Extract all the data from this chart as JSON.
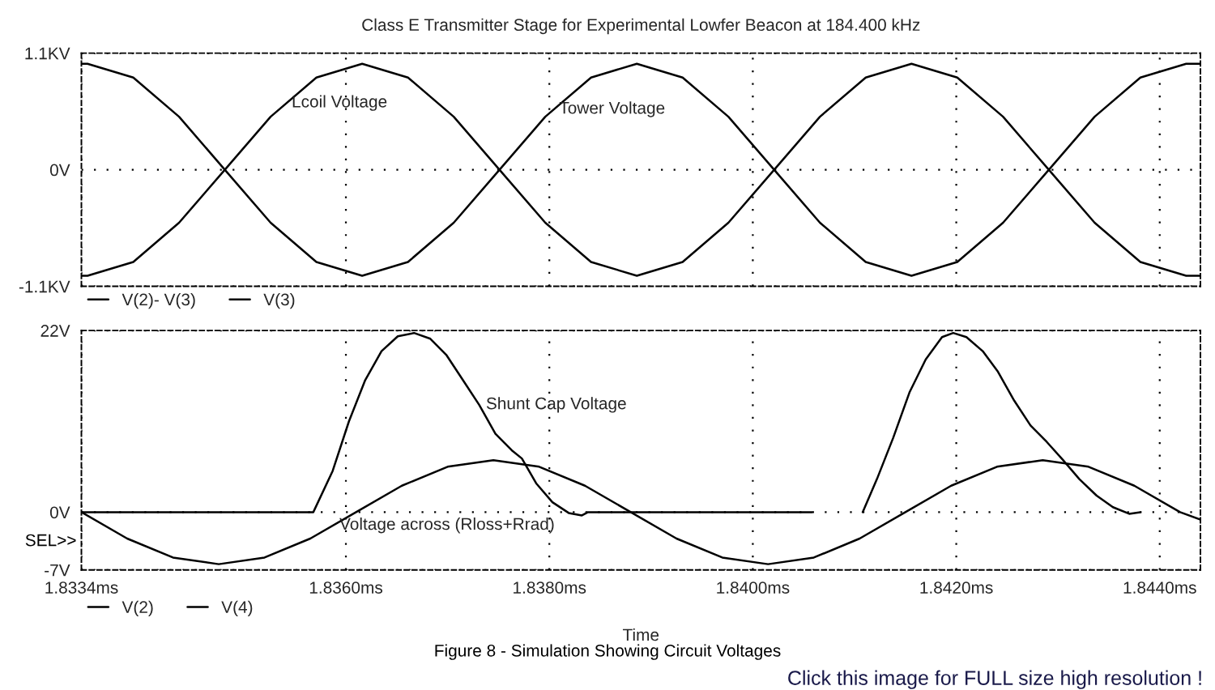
{
  "chart_data": [
    {
      "type": "line",
      "title": "Class E Transmitter Stage for Experimental Lowfer Beacon at 184.400 kHz",
      "x": [
        1.8334,
        1.83346,
        1.83391,
        1.83436,
        1.83481,
        1.83526,
        1.83571,
        1.83616,
        1.83661,
        1.83706,
        1.83751,
        1.83796,
        1.83841,
        1.83886,
        1.83931,
        1.83976,
        1.84021,
        1.84066,
        1.84111,
        1.84156,
        1.84201,
        1.84246,
        1.84291,
        1.84336,
        1.84381,
        1.84426,
        1.8444
      ],
      "series": [
        {
          "name": "V(2)- V(3)",
          "color": "#000000",
          "values": [
            -1,
            -1,
            -0.87,
            -0.5,
            0,
            0.5,
            0.87,
            1,
            0.87,
            0.5,
            0,
            -0.5,
            -0.87,
            -1,
            -0.87,
            -0.5,
            0,
            0.5,
            0.87,
            1,
            0.87,
            0.5,
            0,
            -0.5,
            -0.87,
            -1,
            -1
          ]
        },
        {
          "name": "V(3)",
          "color": "#000000",
          "values": [
            1,
            1,
            0.87,
            0.5,
            0,
            -0.5,
            -0.87,
            -1,
            -0.87,
            -0.5,
            0,
            0.5,
            0.87,
            1,
            0.87,
            0.5,
            0,
            -0.5,
            -0.87,
            -1,
            -0.87,
            -0.5,
            0,
            0.5,
            0.87,
            1,
            1
          ]
        }
      ],
      "xlim": [
        1.8334,
        1.8444
      ],
      "xticks": [
        {
          "value": 1.8334,
          "label": null
        },
        {
          "value": 1.836,
          "label": null
        },
        {
          "value": 1.838,
          "label": null
        },
        {
          "value": 1.84,
          "label": null
        },
        {
          "value": 1.842,
          "label": null
        },
        {
          "value": 1.844,
          "label": null
        }
      ],
      "ylim": [
        -1.1,
        1.1
      ],
      "yticks": [
        {
          "value": -1.1,
          "label": "-1.1KV"
        },
        {
          "value": 0,
          "label": "0V"
        },
        {
          "value": 1.1,
          "label": "1.1KV"
        }
      ],
      "tick_labels": "y",
      "grid": true,
      "legend": "bottom left",
      "line_style": "solid",
      "annotations": [
        {
          "text": "Lcoil Voltage",
          "x": 1.8354,
          "y": 0.63
        },
        {
          "text": "Tower Voltage",
          "x": 1.83803,
          "y": 0.57
        }
      ]
    },
    {
      "type": "line",
      "xlabel": "Time",
      "series": [
        {
          "name": "V(2)",
          "color": "#000000",
          "x": [
            1.8334,
            1.83568,
            1.83587,
            1.83603,
            1.83619,
            1.83635,
            1.83651,
            1.83667,
            1.83683,
            1.83699,
            1.83715,
            1.83731,
            1.83747,
            1.83763,
            1.83773,
            1.83787,
            1.83803,
            1.83819,
            1.83832,
            1.83838,
            1.84058,
            1.84083,
            1.84108,
            1.84122,
            1.84138,
            1.84154,
            1.8417,
            1.84186,
            1.84197,
            1.8421,
            1.84226,
            1.84241,
            1.84257,
            1.84273,
            1.84289,
            1.84305,
            1.84321,
            1.84338,
            1.84354,
            1.8437,
            1.84381
          ],
          "values": [
            0,
            0,
            5,
            11,
            16,
            19.5,
            21.3,
            21.7,
            21,
            19,
            16,
            13,
            9.5,
            7.5,
            6.5,
            3.5,
            1.2,
            -0.1,
            -0.4,
            0,
            0,
            null,
            0,
            4,
            9,
            14.5,
            18.5,
            21.2,
            21.7,
            21.2,
            19.5,
            17,
            13.5,
            10.5,
            8.5,
            6.3,
            4,
            2,
            0.6,
            -0.2,
            0
          ]
        },
        {
          "name": "V(4)",
          "color": "#000000",
          "x": [
            1.8334,
            1.83385,
            1.8343,
            1.83475,
            1.8352,
            1.83565,
            1.8361,
            1.83655,
            1.837,
            1.83745,
            1.8379,
            1.83835,
            1.8388,
            1.83925,
            1.8397,
            1.84015,
            1.8406,
            1.84105,
            1.8415,
            1.84195,
            1.8424,
            1.84285,
            1.8433,
            1.84375,
            1.8442,
            1.8444
          ],
          "values": [
            0,
            -3.2,
            -5.5,
            -6.3,
            -5.5,
            -3.2,
            0,
            3.2,
            5.5,
            6.3,
            5.5,
            3.2,
            0,
            -3.2,
            -5.5,
            -6.3,
            -5.5,
            -3.2,
            0,
            3.2,
            5.5,
            6.3,
            5.5,
            3.2,
            0,
            -0.9
          ]
        }
      ],
      "xlim": [
        1.8334,
        1.8444
      ],
      "xticks": [
        {
          "value": 1.8334,
          "label": "1.8334ms"
        },
        {
          "value": 1.836,
          "label": "1.8360ms"
        },
        {
          "value": 1.838,
          "label": "1.8380ms"
        },
        {
          "value": 1.84,
          "label": "1.8400ms"
        },
        {
          "value": 1.842,
          "label": "1.8420ms"
        },
        {
          "value": 1.844,
          "label": "1.8440ms"
        }
      ],
      "ylim": [
        -7,
        22
      ],
      "yticks": [
        {
          "value": -7,
          "label": "-7V"
        },
        {
          "value": 0,
          "label": "0V"
        },
        {
          "value": 22,
          "label": "22V"
        }
      ],
      "grid": true,
      "legend": "bottom left",
      "line_style": "solid",
      "annotations": [
        {
          "text": "Shunt Cap Voltage",
          "x": 1.83731,
          "y": 13
        },
        {
          "text": "Voltage across (Rloss+Rrad)",
          "x": 1.83587,
          "y": -1.6
        },
        "SEL>>",
        "Figure 8 - Simulation Showing Circuit Voltages",
        "Click this image for FULL size high resolution !"
      ]
    }
  ]
}
